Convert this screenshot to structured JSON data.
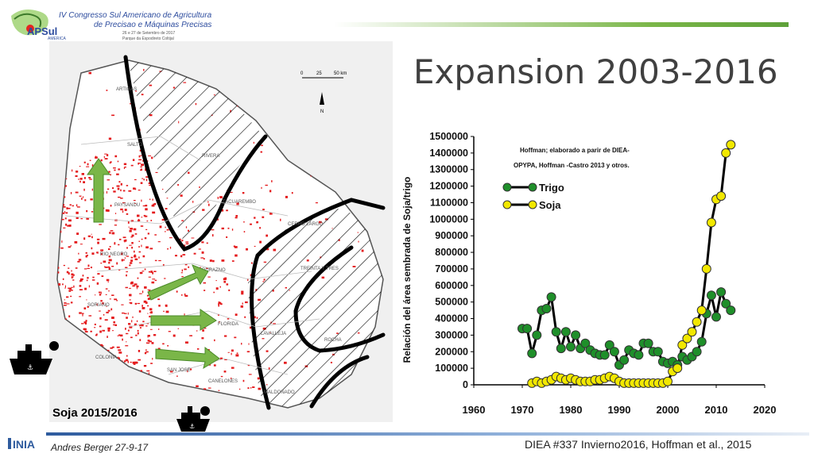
{
  "header": {
    "congress_line1": "IV Congresso Sul Americano de Agricultura",
    "congress_line2": "de Precisao e Máquinas Precisas",
    "dates": "26 e 27 de Setembro de 2017",
    "venue": "Parque da Espodireto Coltijal",
    "logo_text": "APSul",
    "logo_sub": "AMERICA"
  },
  "title": "Expansion 2003-2016",
  "map": {
    "caption": "Soja 2015/2016",
    "scale_labels": [
      "0",
      "25",
      "50 km"
    ],
    "north_label": "N",
    "departments": [
      "ARTIGAS",
      "RIVERA",
      "SALTO",
      "PAYSANDU",
      "TACUAREMBO",
      "CERRO LARGO",
      "RIO NEGRO",
      "DURAZNO",
      "TREINTA Y TRES",
      "SORIANO",
      "FLORIDA",
      "LAVALLEJA",
      "ROCHA",
      "COLONIA",
      "SAN JOSE",
      "CANELONES",
      "MALDONADO"
    ]
  },
  "chart_data": {
    "type": "line",
    "ylabel": "Relación del área sembrada de Soja/trigo",
    "xlim": [
      1960,
      2020
    ],
    "ylim": [
      0,
      1500000
    ],
    "x_ticks": [
      1960,
      1970,
      1980,
      1990,
      2000,
      2010,
      2020
    ],
    "y_ticks": [
      0,
      100000,
      200000,
      300000,
      400000,
      500000,
      600000,
      700000,
      800000,
      900000,
      1000000,
      1100000,
      1200000,
      1300000,
      1400000,
      1500000
    ],
    "annotation_line1": "Hoffman; elaborado a parir de DIEA-",
    "annotation_line2": "OPYPA, Hoffman -Castro 2013 y otros.",
    "legend_position": "top-left",
    "series": [
      {
        "name": "Trigo",
        "color": "#1f8f2a",
        "x": [
          1970,
          1971,
          1972,
          1973,
          1974,
          1975,
          1976,
          1977,
          1978,
          1979,
          1980,
          1981,
          1982,
          1983,
          1984,
          1985,
          1986,
          1987,
          1988,
          1989,
          1990,
          1991,
          1992,
          1993,
          1994,
          1995,
          1996,
          1997,
          1998,
          1999,
          2000,
          2001,
          2002,
          2003,
          2004,
          2005,
          2006,
          2007,
          2008,
          2009,
          2010,
          2011,
          2012,
          2013
        ],
        "values": [
          340000,
          340000,
          190000,
          300000,
          450000,
          460000,
          530000,
          320000,
          220000,
          320000,
          230000,
          300000,
          220000,
          250000,
          210000,
          190000,
          180000,
          180000,
          240000,
          200000,
          120000,
          150000,
          210000,
          190000,
          180000,
          250000,
          250000,
          200000,
          200000,
          140000,
          130000,
          140000,
          120000,
          170000,
          150000,
          170000,
          200000,
          260000,
          430000,
          540000,
          410000,
          560000,
          490000,
          450000
        ]
      },
      {
        "name": "Soja",
        "color": "#f2e800",
        "x": [
          1972,
          1973,
          1974,
          1975,
          1976,
          1977,
          1978,
          1979,
          1980,
          1981,
          1982,
          1983,
          1984,
          1985,
          1986,
          1987,
          1988,
          1989,
          1990,
          1991,
          1992,
          1993,
          1994,
          1995,
          1996,
          1997,
          1998,
          1999,
          2000,
          2001,
          2002,
          2003,
          2004,
          2005,
          2006,
          2007,
          2008,
          2009,
          2010,
          2011,
          2012,
          2013
        ],
        "values": [
          10000,
          20000,
          10000,
          20000,
          30000,
          50000,
          40000,
          30000,
          40000,
          30000,
          20000,
          20000,
          20000,
          30000,
          30000,
          40000,
          50000,
          40000,
          20000,
          10000,
          10000,
          10000,
          10000,
          10000,
          10000,
          10000,
          10000,
          10000,
          20000,
          80000,
          100000,
          240000,
          280000,
          320000,
          380000,
          450000,
          700000,
          980000,
          1120000,
          1140000,
          1400000,
          1450000
        ]
      }
    ]
  },
  "footer": {
    "inia_logo": "INIA",
    "author": "Andres Berger 27-9-17",
    "source": "DIEA #337 Invierno2016, Hoffman et al., 2015"
  }
}
